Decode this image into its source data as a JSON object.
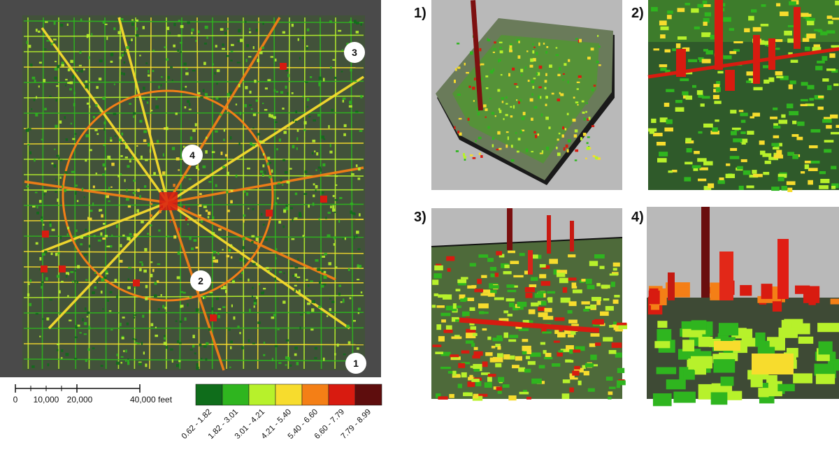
{
  "map": {
    "markers": [
      {
        "id": "3",
        "label": "3"
      },
      {
        "id": "4",
        "label": "4"
      },
      {
        "id": "2",
        "label": "2"
      },
      {
        "id": "1",
        "label": "1"
      }
    ]
  },
  "scale_bar": {
    "ticks": [
      "0",
      "10,000",
      "20,000",
      "40,000 feet"
    ]
  },
  "legend": {
    "classes": [
      {
        "label": "0.62 - 1.82",
        "color": "#0f6d1b"
      },
      {
        "label": "1.82 - 3.01",
        "color": "#2fb51f"
      },
      {
        "label": "3.01 - 4.21",
        "color": "#b7f12b"
      },
      {
        "label": "4.21 - 5.40",
        "color": "#f7dc2d"
      },
      {
        "label": "5.40 - 6.60",
        "color": "#f47f16"
      },
      {
        "label": "6.60 - 7.79",
        "color": "#d81b10"
      },
      {
        "label": "7.79 - 8.99",
        "color": "#5e0d0d"
      }
    ]
  },
  "views": [
    {
      "id": "1",
      "label": "1)"
    },
    {
      "id": "2",
      "label": "2)"
    },
    {
      "id": "3",
      "label": "3)"
    },
    {
      "id": "4",
      "label": "4)"
    }
  ]
}
